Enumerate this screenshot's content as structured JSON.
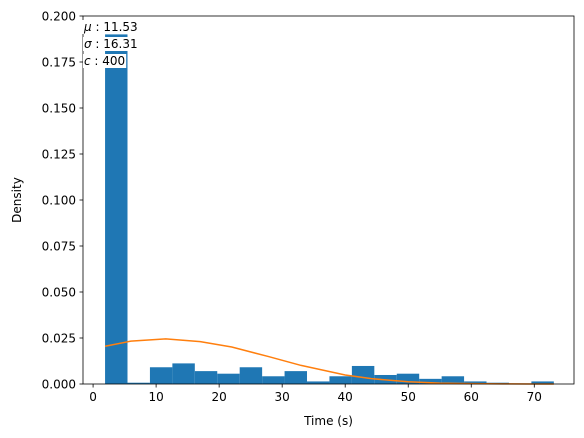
{
  "chart_data": {
    "type": "bar",
    "xlabel": "Time (s)",
    "ylabel": "Density",
    "xlim": [
      -1.6,
      76.3
    ],
    "ylim": [
      0,
      0.2
    ],
    "x_ticks": [
      0,
      10,
      20,
      30,
      40,
      50,
      60,
      70
    ],
    "x_tick_labels": [
      "0",
      "10",
      "20",
      "30",
      "40",
      "50",
      "60",
      "70"
    ],
    "y_ticks": [
      0,
      0.025,
      0.05,
      0.075,
      0.1,
      0.125,
      0.15,
      0.175,
      0.2
    ],
    "y_tick_labels": [
      "0.000",
      "0.025",
      "0.050",
      "0.075",
      "0.100",
      "0.125",
      "0.150",
      "0.175",
      "0.200"
    ],
    "grid": false,
    "histogram": {
      "bin_edges": [
        1.9,
        5.46,
        9.02,
        12.58,
        16.14,
        19.7,
        23.26,
        26.82,
        30.38,
        33.94,
        37.5,
        41.06,
        44.62,
        48.18,
        51.74,
        55.3,
        58.86,
        62.42,
        65.98,
        69.54,
        73.1
      ],
      "values": [
        0.19,
        0.0007,
        0.0091,
        0.0112,
        0.007,
        0.0056,
        0.0091,
        0.0042,
        0.007,
        0.0014,
        0.0042,
        0.0098,
        0.0049,
        0.0056,
        0.0028,
        0.0042,
        0.0014,
        0.0007,
        0.0,
        0.0014
      ],
      "color": "#1f77b4"
    },
    "series": [
      {
        "type": "line",
        "color": "#ff7f0e",
        "x": [
          1.9,
          6.0,
          11.53,
          17.0,
          22.0,
          27.84,
          33.0,
          40.0,
          44.15,
          50.0,
          55.0,
          60.0,
          65.0,
          70.0,
          73.1
        ],
        "y": [
          0.0205,
          0.0233,
          0.0245,
          0.023,
          0.0201,
          0.0149,
          0.0101,
          0.0049,
          0.0029,
          0.0012,
          0.0005,
          0.0002,
          0.0001,
          2e-05,
          1e-05
        ]
      }
    ],
    "annotations": {
      "mu": {
        "symbol": "μ",
        "value": "11.53"
      },
      "sigma": {
        "symbol": "σ",
        "value": "16.31"
      },
      "c": {
        "symbol": "c",
        "value": "400"
      }
    }
  }
}
